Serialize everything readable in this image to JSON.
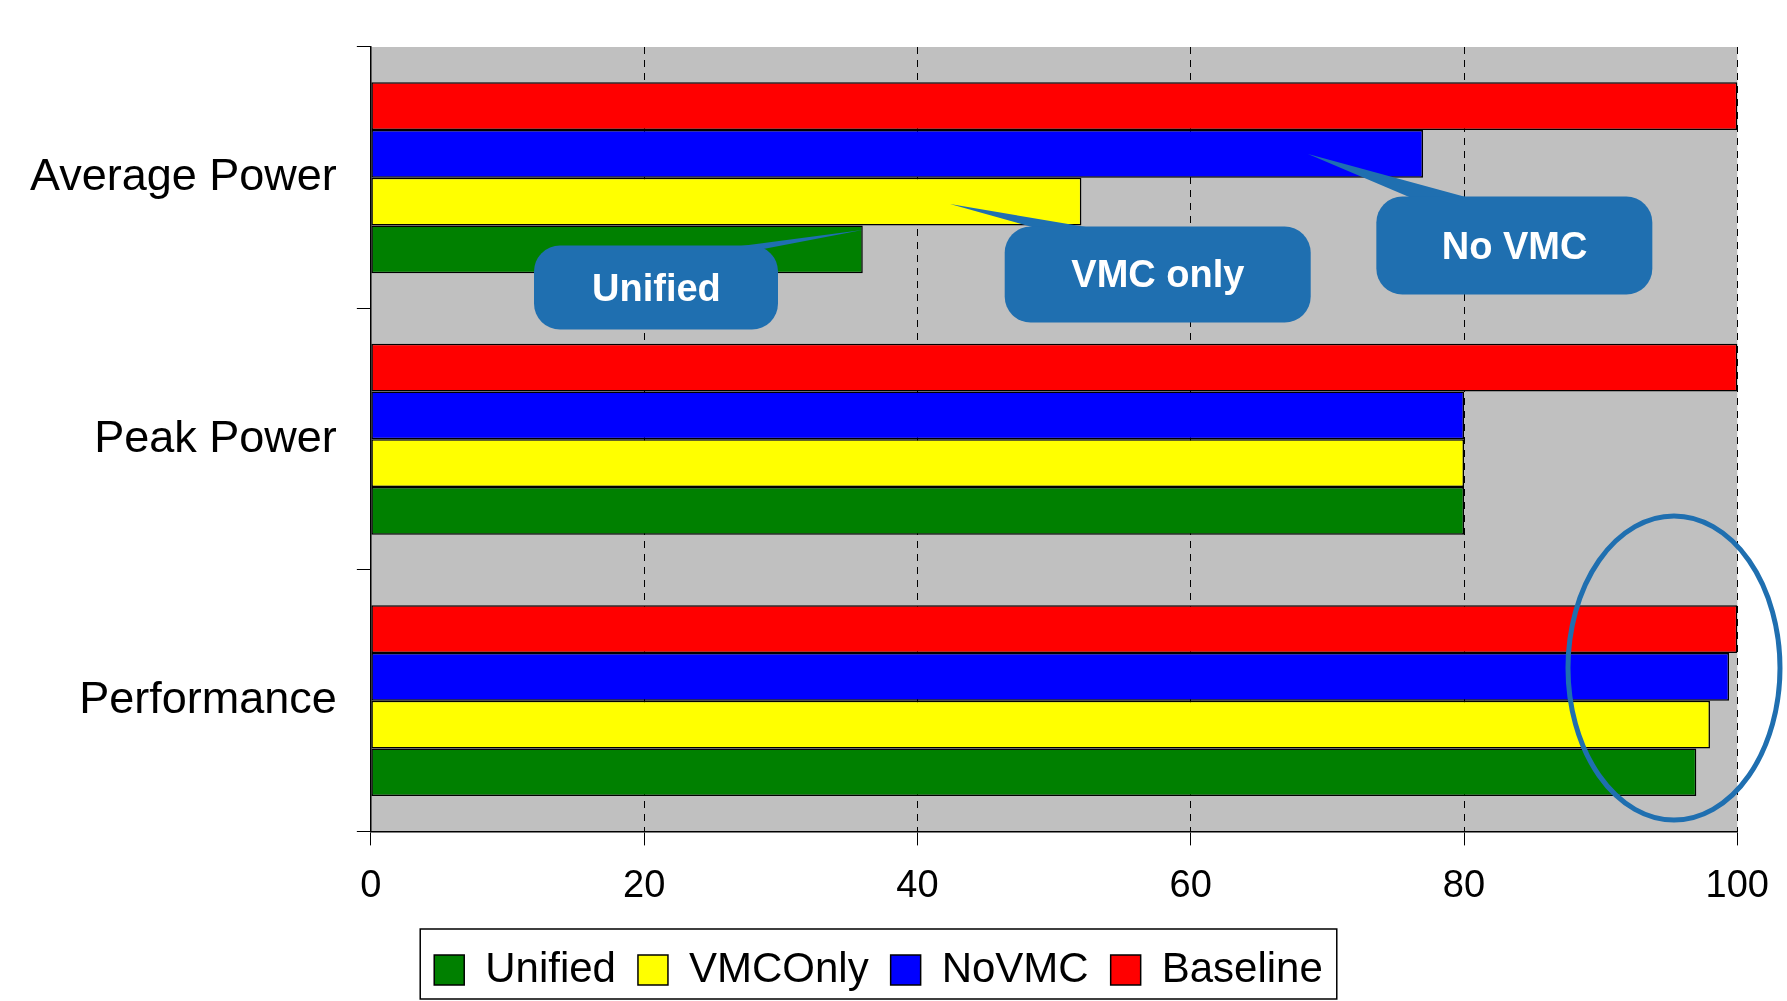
{
  "chart_data": {
    "type": "bar",
    "orientation": "horizontal",
    "categories": [
      "Average Power",
      "Peak Power",
      "Performance"
    ],
    "series": [
      {
        "name": "Unified",
        "color": "#008000",
        "values": [
          36,
          80,
          97
        ]
      },
      {
        "name": "VMCOnly",
        "color": "#ffff00",
        "values": [
          52,
          80,
          98
        ]
      },
      {
        "name": "NoVMC",
        "color": "#0000ff",
        "values": [
          77,
          80,
          99.4
        ]
      },
      {
        "name": "Baseline",
        "color": "#ff0000",
        "values": [
          100,
          100,
          100
        ]
      }
    ],
    "xlim": [
      0,
      100
    ],
    "xticks": [
      0,
      20,
      40,
      60,
      80,
      100
    ],
    "grid": "x",
    "legend": "bottom",
    "annotations": [
      "Unified",
      "VMC only",
      "No VMC"
    ]
  }
}
